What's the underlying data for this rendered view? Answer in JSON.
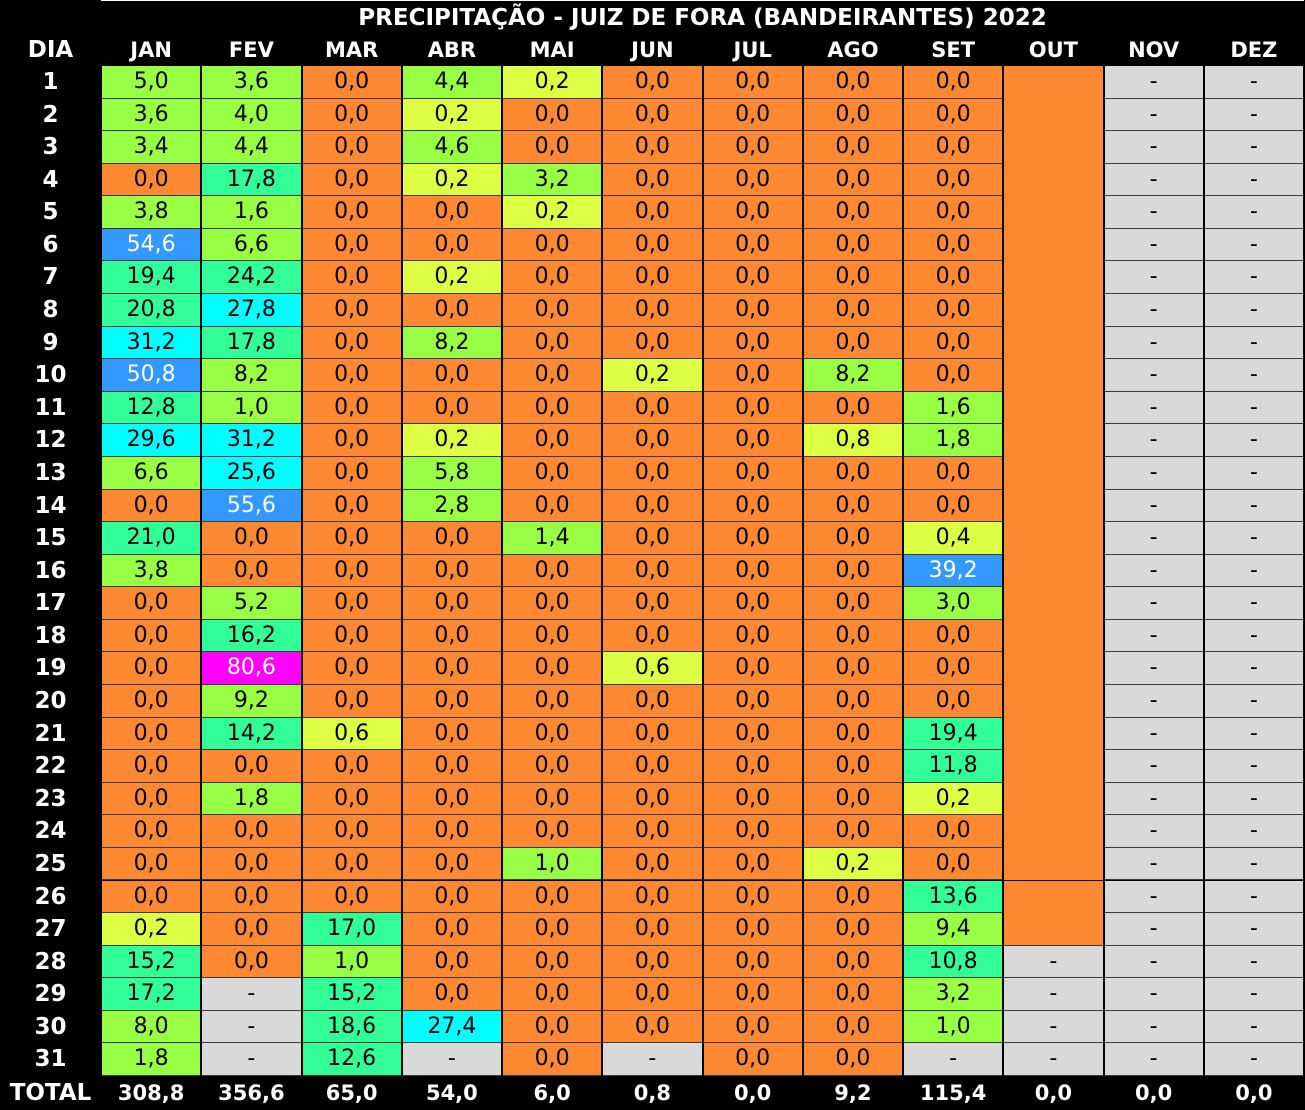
{
  "title": "PRECIPITAÇÃO - JUIZ DE FORA (BANDEIRANTES) 2022",
  "day_header": "DIA",
  "total_label": "TOTAL",
  "months": [
    "JAN",
    "FEV",
    "MAR",
    "ABR",
    "MAI",
    "JUN",
    "JUL",
    "AGO",
    "SET",
    "OUT",
    "NOV",
    "DEZ"
  ],
  "days": [
    "1",
    "2",
    "3",
    "4",
    "5",
    "6",
    "7",
    "8",
    "9",
    "10",
    "11",
    "12",
    "13",
    "14",
    "15",
    "16",
    "17",
    "18",
    "19",
    "20",
    "21",
    "22",
    "23",
    "24",
    "25",
    "26",
    "27",
    "28",
    "29",
    "30",
    "31"
  ],
  "colors": {
    "zero": "#ff8833",
    "lt1": "#ddff44",
    "lt10": "#99ff44",
    "lt25": "#33ff99",
    "lt35": "#00ffff",
    "lt60": "#3399ff",
    "ge60": "#ff00ff",
    "none": "#d9d9d9"
  },
  "values": [
    [
      "5,0",
      "3,6",
      "0,0",
      "4,4",
      "0,2",
      "0,0",
      "0,0",
      "0,0",
      "0,0",
      "",
      "-",
      "-"
    ],
    [
      "3,6",
      "4,0",
      "0,0",
      "0,2",
      "0,0",
      "0,0",
      "0,0",
      "0,0",
      "0,0",
      "",
      "-",
      "-"
    ],
    [
      "3,4",
      "4,4",
      "0,0",
      "4,6",
      "0,0",
      "0,0",
      "0,0",
      "0,0",
      "0,0",
      "",
      "-",
      "-"
    ],
    [
      "0,0",
      "17,8",
      "0,0",
      "0,2",
      "3,2",
      "0,0",
      "0,0",
      "0,0",
      "0,0",
      "",
      "-",
      "-"
    ],
    [
      "3,8",
      "1,6",
      "0,0",
      "0,0",
      "0,2",
      "0,0",
      "0,0",
      "0,0",
      "0,0",
      "",
      "-",
      "-"
    ],
    [
      "54,6",
      "6,6",
      "0,0",
      "0,0",
      "0,0",
      "0,0",
      "0,0",
      "0,0",
      "0,0",
      "",
      "-",
      "-"
    ],
    [
      "19,4",
      "24,2",
      "0,0",
      "0,2",
      "0,0",
      "0,0",
      "0,0",
      "0,0",
      "0,0",
      "",
      "-",
      "-"
    ],
    [
      "20,8",
      "27,8",
      "0,0",
      "0,0",
      "0,0",
      "0,0",
      "0,0",
      "0,0",
      "0,0",
      "",
      "-",
      "-"
    ],
    [
      "31,2",
      "17,8",
      "0,0",
      "8,2",
      "0,0",
      "0,0",
      "0,0",
      "0,0",
      "0,0",
      "",
      "-",
      "-"
    ],
    [
      "50,8",
      "8,2",
      "0,0",
      "0,0",
      "0,0",
      "0,2",
      "0,0",
      "8,2",
      "0,0",
      "",
      "-",
      "-"
    ],
    [
      "12,8",
      "1,0",
      "0,0",
      "0,0",
      "0,0",
      "0,0",
      "0,0",
      "0,0",
      "1,6",
      "",
      "-",
      "-"
    ],
    [
      "29,6",
      "31,2",
      "0,0",
      "0,2",
      "0,0",
      "0,0",
      "0,0",
      "0,8",
      "1,8",
      "",
      "-",
      "-"
    ],
    [
      "6,6",
      "25,6",
      "0,0",
      "5,8",
      "0,0",
      "0,0",
      "0,0",
      "0,0",
      "0,0",
      "",
      "-",
      "-"
    ],
    [
      "0,0",
      "55,6",
      "0,0",
      "2,8",
      "0,0",
      "0,0",
      "0,0",
      "0,0",
      "0,0",
      "",
      "-",
      "-"
    ],
    [
      "21,0",
      "0,0",
      "0,0",
      "0,0",
      "1,4",
      "0,0",
      "0,0",
      "0,0",
      "0,4",
      "",
      "-",
      "-"
    ],
    [
      "3,8",
      "0,0",
      "0,0",
      "0,0",
      "0,0",
      "0,0",
      "0,0",
      "0,0",
      "39,2",
      "",
      "-",
      "-"
    ],
    [
      "0,0",
      "5,2",
      "0,0",
      "0,0",
      "0,0",
      "0,0",
      "0,0",
      "0,0",
      "3,0",
      "",
      "-",
      "-"
    ],
    [
      "0,0",
      "16,2",
      "0,0",
      "0,0",
      "0,0",
      "0,0",
      "0,0",
      "0,0",
      "0,0",
      "",
      "-",
      "-"
    ],
    [
      "0,0",
      "80,6",
      "0,0",
      "0,0",
      "0,0",
      "0,6",
      "0,0",
      "0,0",
      "0,0",
      "",
      "-",
      "-"
    ],
    [
      "0,0",
      "9,2",
      "0,0",
      "0,0",
      "0,0",
      "0,0",
      "0,0",
      "0,0",
      "0,0",
      "",
      "-",
      "-"
    ],
    [
      "0,0",
      "14,2",
      "0,6",
      "0,0",
      "0,0",
      "0,0",
      "0,0",
      "0,0",
      "19,4",
      "",
      "-",
      "-"
    ],
    [
      "0,0",
      "0,0",
      "0,0",
      "0,0",
      "0,0",
      "0,0",
      "0,0",
      "0,0",
      "11,8",
      "",
      "-",
      "-"
    ],
    [
      "0,0",
      "1,8",
      "0,0",
      "0,0",
      "0,0",
      "0,0",
      "0,0",
      "0,0",
      "0,2",
      "",
      "-",
      "-"
    ],
    [
      "0,0",
      "0,0",
      "0,0",
      "0,0",
      "0,0",
      "0,0",
      "0,0",
      "0,0",
      "0,0",
      "",
      "-",
      "-"
    ],
    [
      "0,0",
      "0,0",
      "0,0",
      "0,0",
      "1,0",
      "0,0",
      "0,0",
      "0,2",
      "0,0",
      "",
      "-",
      "-"
    ],
    [
      "0,0",
      "0,0",
      "0,0",
      "0,0",
      "0,0",
      "0,0",
      "0,0",
      "0,0",
      "13,6",
      "",
      "-",
      "-"
    ],
    [
      "0,2",
      "0,0",
      "17,0",
      "0,0",
      "0,0",
      "0,0",
      "0,0",
      "0,0",
      "9,4",
      "",
      "-",
      "-"
    ],
    [
      "15,2",
      "0,0",
      "1,0",
      "0,0",
      "0,0",
      "0,0",
      "0,0",
      "0,0",
      "10,8",
      "-",
      "-",
      "-"
    ],
    [
      "17,2",
      "-",
      "15,2",
      "0,0",
      "0,0",
      "0,0",
      "0,0",
      "0,0",
      "3,2",
      "-",
      "-",
      "-"
    ],
    [
      "8,0",
      "-",
      "18,6",
      "27,4",
      "0,0",
      "0,0",
      "0,0",
      "0,0",
      "1,0",
      "-",
      "-",
      "-"
    ],
    [
      "1,8",
      "-",
      "12,6",
      "-",
      "0,0",
      "-",
      "0,0",
      "0,0",
      "-",
      "-",
      "-",
      "-"
    ]
  ],
  "totals": [
    "308,8",
    "356,6",
    "65,0",
    "54,0",
    "6,0",
    "0,8",
    "0,0",
    "9,2",
    "115,4",
    "0,0",
    "0,0",
    "0,0"
  ]
}
